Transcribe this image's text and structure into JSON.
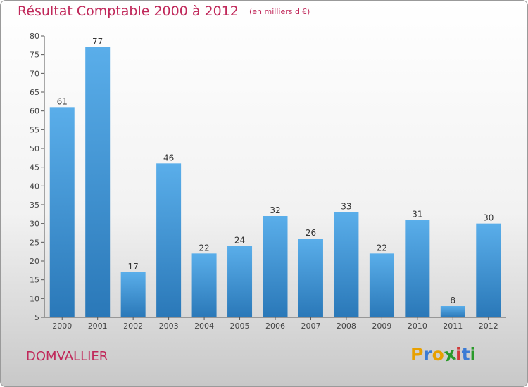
{
  "title": "Résultat Comptable 2000 à 2012",
  "unit": "(en milliers d'€)",
  "commune": "DOMVALLIER",
  "logo": {
    "text": "Proxiti",
    "colors": [
      "#e8a000",
      "#3a7bd5",
      "#e8a000",
      "#2a9a2a",
      "#d03a3a",
      "#3a7bd5",
      "#2a9a2a"
    ]
  },
  "colors": {
    "accent": "#c0285a",
    "bar_top": "#5aaeea",
    "bar_bottom": "#2a78b8",
    "axis": "#555555"
  },
  "chart_data": {
    "type": "bar",
    "title": "Résultat Comptable 2000 à 2012",
    "subtitle": "(en milliers d'€)",
    "categories": [
      "2000",
      "2001",
      "2002",
      "2003",
      "2004",
      "2005",
      "2006",
      "2007",
      "2008",
      "2009",
      "2010",
      "2011",
      "2012"
    ],
    "values": [
      61,
      77,
      17,
      46,
      22,
      24,
      32,
      26,
      33,
      22,
      31,
      8,
      30
    ],
    "ylim": [
      5,
      80
    ],
    "yticks": [
      5,
      10,
      15,
      20,
      25,
      30,
      35,
      40,
      45,
      50,
      55,
      60,
      65,
      70,
      75,
      80
    ],
    "grid": false,
    "legend": "none"
  }
}
